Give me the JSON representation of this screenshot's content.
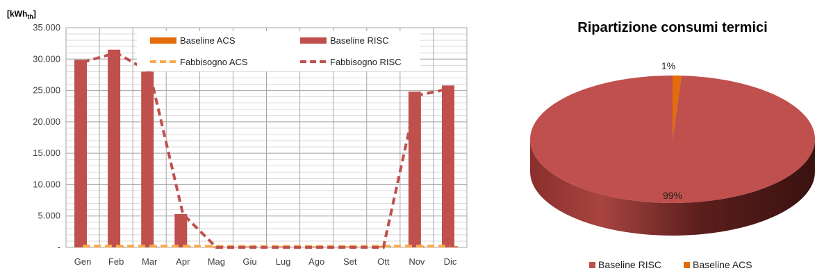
{
  "chart_data": [
    {
      "type": "bar",
      "ylabel": "[kWh",
      "ylabel_sub": "th",
      "ylabel_close": "]",
      "ylim": [
        0,
        35000
      ],
      "y_ticks": [
        {
          "value": 0,
          "label": "-"
        },
        {
          "value": 5000,
          "label": "5.000"
        },
        {
          "value": 10000,
          "label": "10.000"
        },
        {
          "value": 15000,
          "label": "15.000"
        },
        {
          "value": 20000,
          "label": "20.000"
        },
        {
          "value": 25000,
          "label": "25.000"
        },
        {
          "value": 30000,
          "label": "30.000"
        },
        {
          "value": 35000,
          "label": "35.000"
        }
      ],
      "grid": true,
      "legend_position": "top",
      "categories": [
        "Gen",
        "Feb",
        "Mar",
        "Apr",
        "Mag",
        "Giu",
        "Lug",
        "Ago",
        "Set",
        "Ott",
        "Nov",
        "Dic"
      ],
      "series": [
        {
          "name": "Baseline ACS",
          "kind": "bar",
          "color": "#E46C0A",
          "values": [
            200,
            200,
            200,
            200,
            150,
            150,
            150,
            150,
            150,
            200,
            200,
            200
          ]
        },
        {
          "name": "Baseline RISC",
          "kind": "bar",
          "color": "#C0504D",
          "values": [
            29900,
            31500,
            28000,
            5300,
            0,
            0,
            0,
            0,
            0,
            0,
            24800,
            25800
          ]
        },
        {
          "name": "Fabbisogno ACS",
          "kind": "line-dashed",
          "color": "#F9A94A",
          "values": [
            200,
            200,
            200,
            200,
            150,
            150,
            150,
            150,
            150,
            200,
            200,
            200
          ]
        },
        {
          "name": "Fabbisogno RISC",
          "kind": "line-dashed",
          "color": "#C0504D",
          "values": [
            29500,
            31000,
            28000,
            5300,
            0,
            0,
            0,
            0,
            0,
            0,
            24200,
            25300
          ]
        }
      ]
    },
    {
      "type": "pie",
      "title": "Ripartizione consumi termici",
      "slices": [
        {
          "name": "Baseline RISC",
          "value": 99,
          "label": "99%",
          "color": "#C0504D"
        },
        {
          "name": "Baseline ACS",
          "value": 1,
          "label": "1%",
          "color": "#E46C0A"
        }
      ],
      "legend_position": "bottom"
    }
  ]
}
